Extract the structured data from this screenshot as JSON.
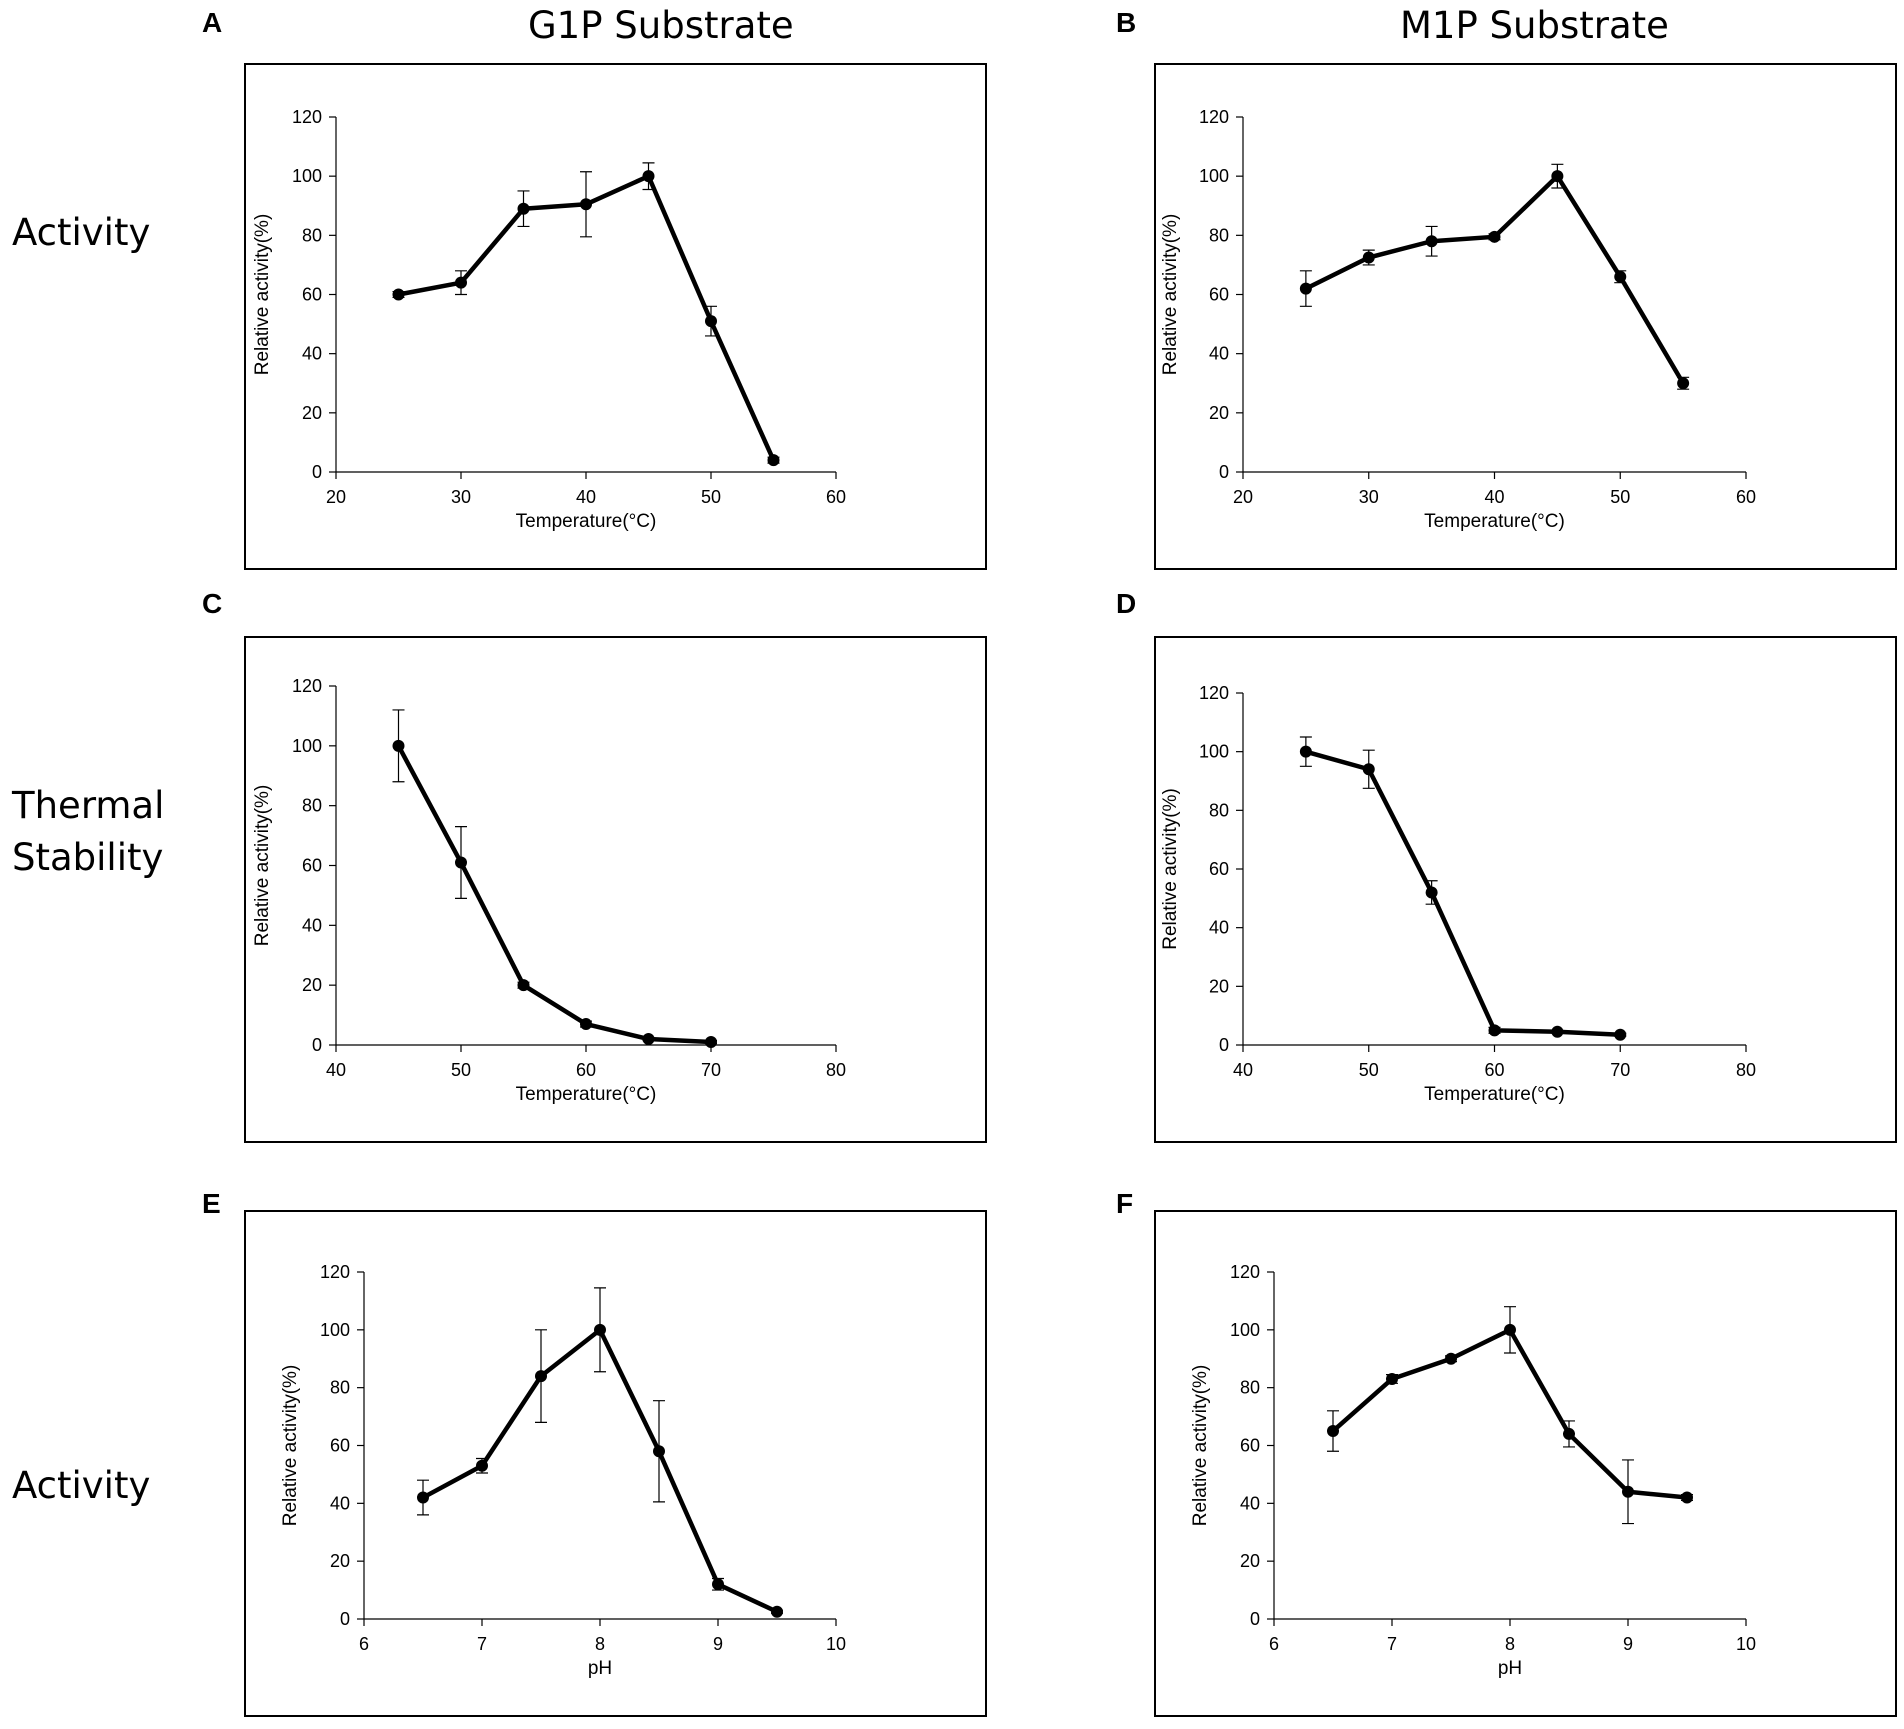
{
  "column_titles": [
    "G1P Substrate",
    "M1P Substrate"
  ],
  "row_labels": [
    "Activity",
    "Thermal\nStability",
    "Activity"
  ],
  "chart_data": [
    {
      "panel": "A",
      "type": "line",
      "title": "",
      "xlabel": "Temperature(°C)",
      "ylabel": "Relative activity(%)",
      "xlim": [
        20,
        60
      ],
      "ylim": [
        0,
        120
      ],
      "xticks": [
        20,
        30,
        40,
        50,
        60
      ],
      "yticks": [
        0,
        20,
        40,
        60,
        80,
        100,
        120
      ],
      "x": [
        25,
        30,
        35,
        40,
        45,
        50,
        55
      ],
      "values": [
        60,
        64,
        89,
        90.5,
        100,
        51,
        4
      ],
      "errors": [
        1,
        4,
        6,
        11,
        4.5,
        5,
        1
      ]
    },
    {
      "panel": "B",
      "type": "line",
      "title": "",
      "xlabel": "Temperature(°C)",
      "ylabel": "Relative activity(%)",
      "xlim": [
        20,
        60
      ],
      "ylim": [
        0,
        120
      ],
      "xticks": [
        20,
        30,
        40,
        50,
        60
      ],
      "yticks": [
        0,
        20,
        40,
        60,
        80,
        100,
        120
      ],
      "x": [
        25,
        30,
        35,
        40,
        45,
        50,
        55
      ],
      "values": [
        62,
        72.5,
        78,
        79.5,
        100,
        66,
        30
      ],
      "errors": [
        6,
        2.5,
        5,
        1,
        4,
        2,
        2
      ]
    },
    {
      "panel": "C",
      "type": "line",
      "title": "",
      "xlabel": "Temperature(°C)",
      "ylabel": "Relative activity(%)",
      "xlim": [
        40,
        80
      ],
      "ylim": [
        0,
        120
      ],
      "xticks": [
        40,
        50,
        60,
        70,
        80
      ],
      "yticks": [
        0,
        20,
        40,
        60,
        80,
        100,
        120
      ],
      "x": [
        45,
        50,
        55,
        60,
        65,
        70
      ],
      "values": [
        100,
        61,
        20,
        7,
        2,
        1
      ],
      "errors": [
        12,
        12,
        1,
        1,
        0.5,
        0.5
      ]
    },
    {
      "panel": "D",
      "type": "line",
      "title": "",
      "xlabel": "Temperature(°C)",
      "ylabel": "Relative activity(%)",
      "xlim": [
        40,
        80
      ],
      "ylim": [
        0,
        120
      ],
      "xticks": [
        40,
        50,
        60,
        70,
        80
      ],
      "yticks": [
        0,
        20,
        40,
        60,
        80,
        100,
        120
      ],
      "x": [
        45,
        50,
        55,
        60,
        65,
        70
      ],
      "values": [
        100,
        94,
        52,
        5,
        4.5,
        3.5
      ],
      "errors": [
        5,
        6.5,
        4,
        1,
        0.5,
        0.5
      ]
    },
    {
      "panel": "E",
      "type": "line",
      "title": "",
      "xlabel": "pH",
      "ylabel": "Relative activity(%)",
      "xlim": [
        6,
        10
      ],
      "ylim": [
        0,
        120
      ],
      "xticks": [
        6,
        7,
        8,
        9,
        10
      ],
      "yticks": [
        0,
        20,
        40,
        60,
        80,
        100,
        120
      ],
      "x": [
        6.5,
        7,
        7.5,
        8,
        8.5,
        9,
        9.5
      ],
      "values": [
        42,
        53,
        84,
        100,
        58,
        12,
        2.5
      ],
      "errors": [
        6,
        2.5,
        16,
        14.5,
        17.5,
        2,
        0.5
      ]
    },
    {
      "panel": "F",
      "type": "line",
      "title": "",
      "xlabel": "pH",
      "ylabel": "Relative activity(%)",
      "xlim": [
        6,
        10
      ],
      "ylim": [
        0,
        120
      ],
      "xticks": [
        6,
        7,
        8,
        9,
        10
      ],
      "yticks": [
        0,
        20,
        40,
        60,
        80,
        100,
        120
      ],
      "x": [
        6.5,
        7,
        7.5,
        8,
        8.5,
        9,
        9.5
      ],
      "values": [
        65,
        83,
        90,
        100,
        64,
        44,
        42
      ],
      "errors": [
        7,
        1.5,
        1,
        8,
        4.5,
        11,
        1
      ]
    }
  ]
}
